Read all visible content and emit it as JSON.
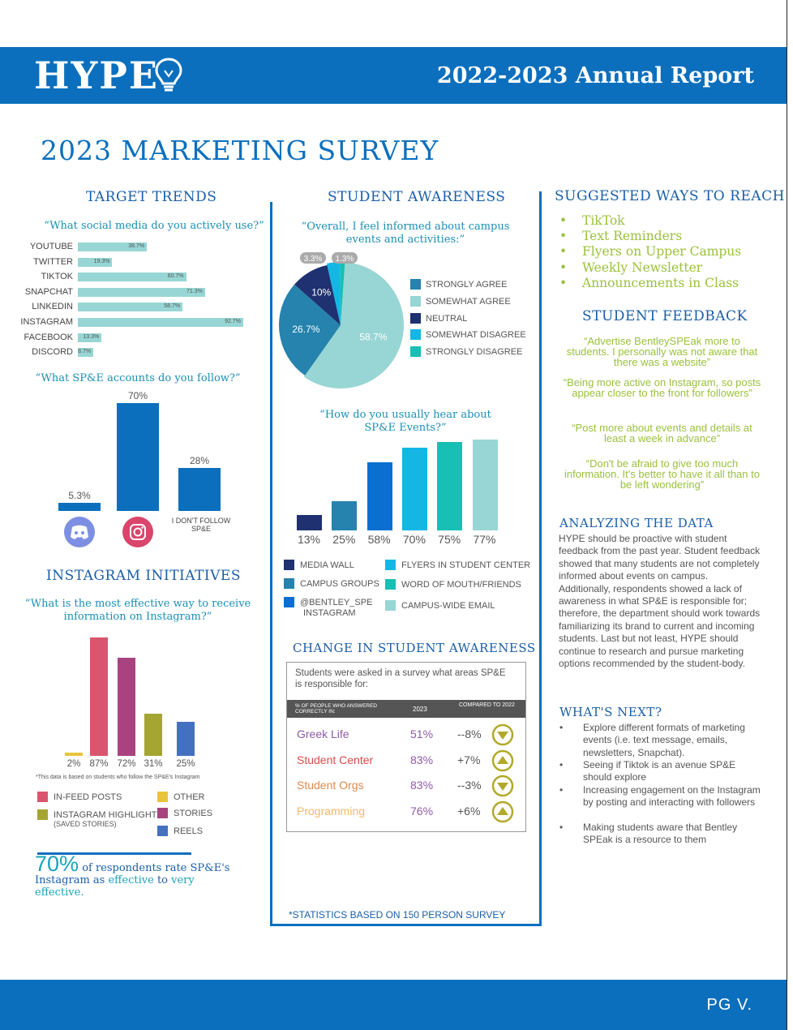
{
  "header": {
    "logo": "HYPE",
    "title": "2022-2023 Annual Report"
  },
  "page_title": "2023 MARKETING SURVEY",
  "footer": {
    "page": "PG V."
  },
  "colors": {
    "brand_blue": "#0b6fbd",
    "teal": "#97d6d4",
    "green": "#9ac13c"
  },
  "target_trends": {
    "title": "TARGET TRENDS",
    "question": "“What social media do you actively use?”",
    "chart_data": {
      "type": "bar",
      "orientation": "horizontal",
      "categories": [
        "YOUTUBE",
        "TWITTER",
        "TIKTOK",
        "SNAPCHAT",
        "LINKEDIN",
        "INSTAGRAM",
        "FACEBOOK",
        "DISCORD"
      ],
      "values": [
        38.7,
        19.3,
        60.7,
        71.3,
        58.7,
        92.7,
        13.3,
        8.7
      ],
      "labels": [
        "38.7%",
        "19.3%",
        "60.7%",
        "71.3%",
        "58.7%",
        "92.7%",
        "13.3%",
        "8.7%"
      ],
      "xlim": [
        0,
        100
      ]
    }
  },
  "accounts": {
    "question": "“What SP&E accounts do you follow?”",
    "chart_data": {
      "type": "bar",
      "categories": [
        "discord-icon",
        "instagram-icon",
        "I DON'T FOLLOW SP&E"
      ],
      "values": [
        5.3,
        70,
        28
      ],
      "labels": [
        "5.3%",
        "70%",
        "28%"
      ],
      "ylim": [
        0,
        70
      ]
    },
    "no_follow_label": "I DON'T FOLLOW SP&E"
  },
  "instagram": {
    "title": "INSTAGRAM INITIATIVES",
    "question": "“What is the most effective way to receive information on Instagram?”",
    "chart_data": {
      "type": "bar",
      "categories": [
        "OTHER",
        "IN-FEED POSTS",
        "STORIES",
        "INSTAGRAM HIGHLIGHTS (SAVED STORIES)",
        "REELS"
      ],
      "values": [
        2,
        87,
        72,
        31,
        25
      ],
      "labels": [
        "2%",
        "87%",
        "72%",
        "31%",
        "25%"
      ],
      "colors": [
        "#e8c43a",
        "#d9566e",
        "#a8437f",
        "#a5a532",
        "#4470c0"
      ],
      "ylim": [
        0,
        87
      ]
    },
    "footnote": "*This data is based on students who follow the SP&E's Instagram",
    "legend": [
      {
        "label": "IN-FEED POSTS",
        "color": "#d9566e"
      },
      {
        "label": "OTHER",
        "color": "#e8c43a"
      },
      {
        "label": "INSTAGRAM HIGHLIGHTS",
        "sub": "(SAVED STORIES)",
        "color": "#a5a532"
      },
      {
        "label": "STORIES",
        "color": "#a8437f"
      },
      {
        "label": "REELS",
        "color": "#4470c0"
      }
    ],
    "stat": {
      "big": "70%",
      "line1": "of respondents rate SP&E's",
      "line2a": "Instagram as",
      "effective": "effective",
      "to": "to",
      "very": "very",
      "line3": "effective."
    }
  },
  "awareness": {
    "title": "STUDENT AWARENESS",
    "question": "“Overall, I feel informed about campus events and activities:”",
    "chart_data": {
      "type": "pie",
      "categories": [
        "STRONGLY AGREE",
        "SOMEWHAT AGREE",
        "NEUTRAL",
        "SOMEWHAT DISAGREE",
        "STRONGLY DISAGREE"
      ],
      "values": [
        26.7,
        58.7,
        10,
        3.3,
        1.3
      ],
      "labels": [
        "26.7%",
        "58.7%",
        "10%",
        "3.3%",
        "1.3%"
      ],
      "colors": [
        "#2583ad",
        "#97d6d4",
        "#1f3170",
        "#14b7e4",
        "#17bfb4"
      ]
    }
  },
  "hear": {
    "question": "“How do you usually hear about SP&E Events?”",
    "chart_data": {
      "type": "bar",
      "categories": [
        "MEDIA WALL",
        "CAMPUS GROUPS",
        "@BENTLEY_SPE INSTAGRAM",
        "FLYERS IN STUDENT CENTER",
        "WORD OF MOUTH/FRIENDS",
        "CAMPUS-WIDE EMAIL"
      ],
      "values": [
        13,
        25,
        58,
        70,
        75,
        77
      ],
      "labels": [
        "13%",
        "25%",
        "58%",
        "70%",
        "75%",
        "77%"
      ],
      "colors": [
        "#1f3170",
        "#2583ad",
        "#0b6fd1",
        "#14b7e4",
        "#17bfb4",
        "#97d6d4"
      ],
      "ylim": [
        0,
        77
      ]
    },
    "legend_sub": "INSTAGRAM"
  },
  "change": {
    "title": "CHANGE IN STUDENT AWARENESS",
    "intro": "Students were asked in a survey what areas SP&E is responsible for:",
    "col1": "% OF PEOPLE WHO ANSWERED CORRECTLY IN:",
    "col2": "2023",
    "col3": "COMPARED TO 2022",
    "rows": [
      {
        "area": "Greek Life",
        "val": "51%",
        "change": "--8%",
        "dir": "down",
        "color": "#8e5aa8"
      },
      {
        "area": "Student Center",
        "val": "83%",
        "change": "+7%",
        "dir": "up",
        "color": "#d84a4a"
      },
      {
        "area": "Student Orgs",
        "val": "83%",
        "change": "--3%",
        "dir": "down",
        "color": "#e0894a"
      },
      {
        "area": "Programming",
        "val": "76%",
        "change": "+6%",
        "dir": "up",
        "color": "#f2b866"
      }
    ],
    "footnote": "*STATISTICS BASED ON 150 PERSON SURVEY"
  },
  "reach": {
    "title": "SUGGESTED WAYS TO REACH",
    "items": [
      "TikTok",
      "Text Reminders",
      "Flyers on Upper Campus",
      "Weekly Newsletter",
      "Announcements in Class"
    ]
  },
  "feedback": {
    "title": "STUDENT FEEDBACK",
    "quotes": [
      "“Advertise BentleySPEak more to students. I personally was not aware that there was a website”",
      "“Being more active on Instagram, so posts appear closer to the front for followers”",
      "“Post more about events and details at least a week in advance”",
      "“Don't be afraid to give too much information. It's better to have it all than to be left wondering”"
    ]
  },
  "analyzing": {
    "title": "ANALYZING THE DATA",
    "text": "HYPE should be proactive with student feedback from the past year. Student feedback showed that many students are not completely informed about events on campus. Additionally, respondents showed a lack of awareness in what SP&E is responsible for; therefore, the department should work towards familiarizing its brand to current and incoming students. Last but not least, HYPE should continue to research and pursue marketing options recommended by the student-body."
  },
  "next": {
    "title": "WHAT'S NEXT?",
    "items": [
      "Explore different formats of marketing events (i.e. text message, emails, newsletters, Snapchat).",
      "Seeing if Tiktok is an avenue SP&E should explore",
      "Increasing engagement on the Instagram by posting and interacting with followers",
      "Making students aware that Bentley SPEak is a resource to them"
    ]
  }
}
